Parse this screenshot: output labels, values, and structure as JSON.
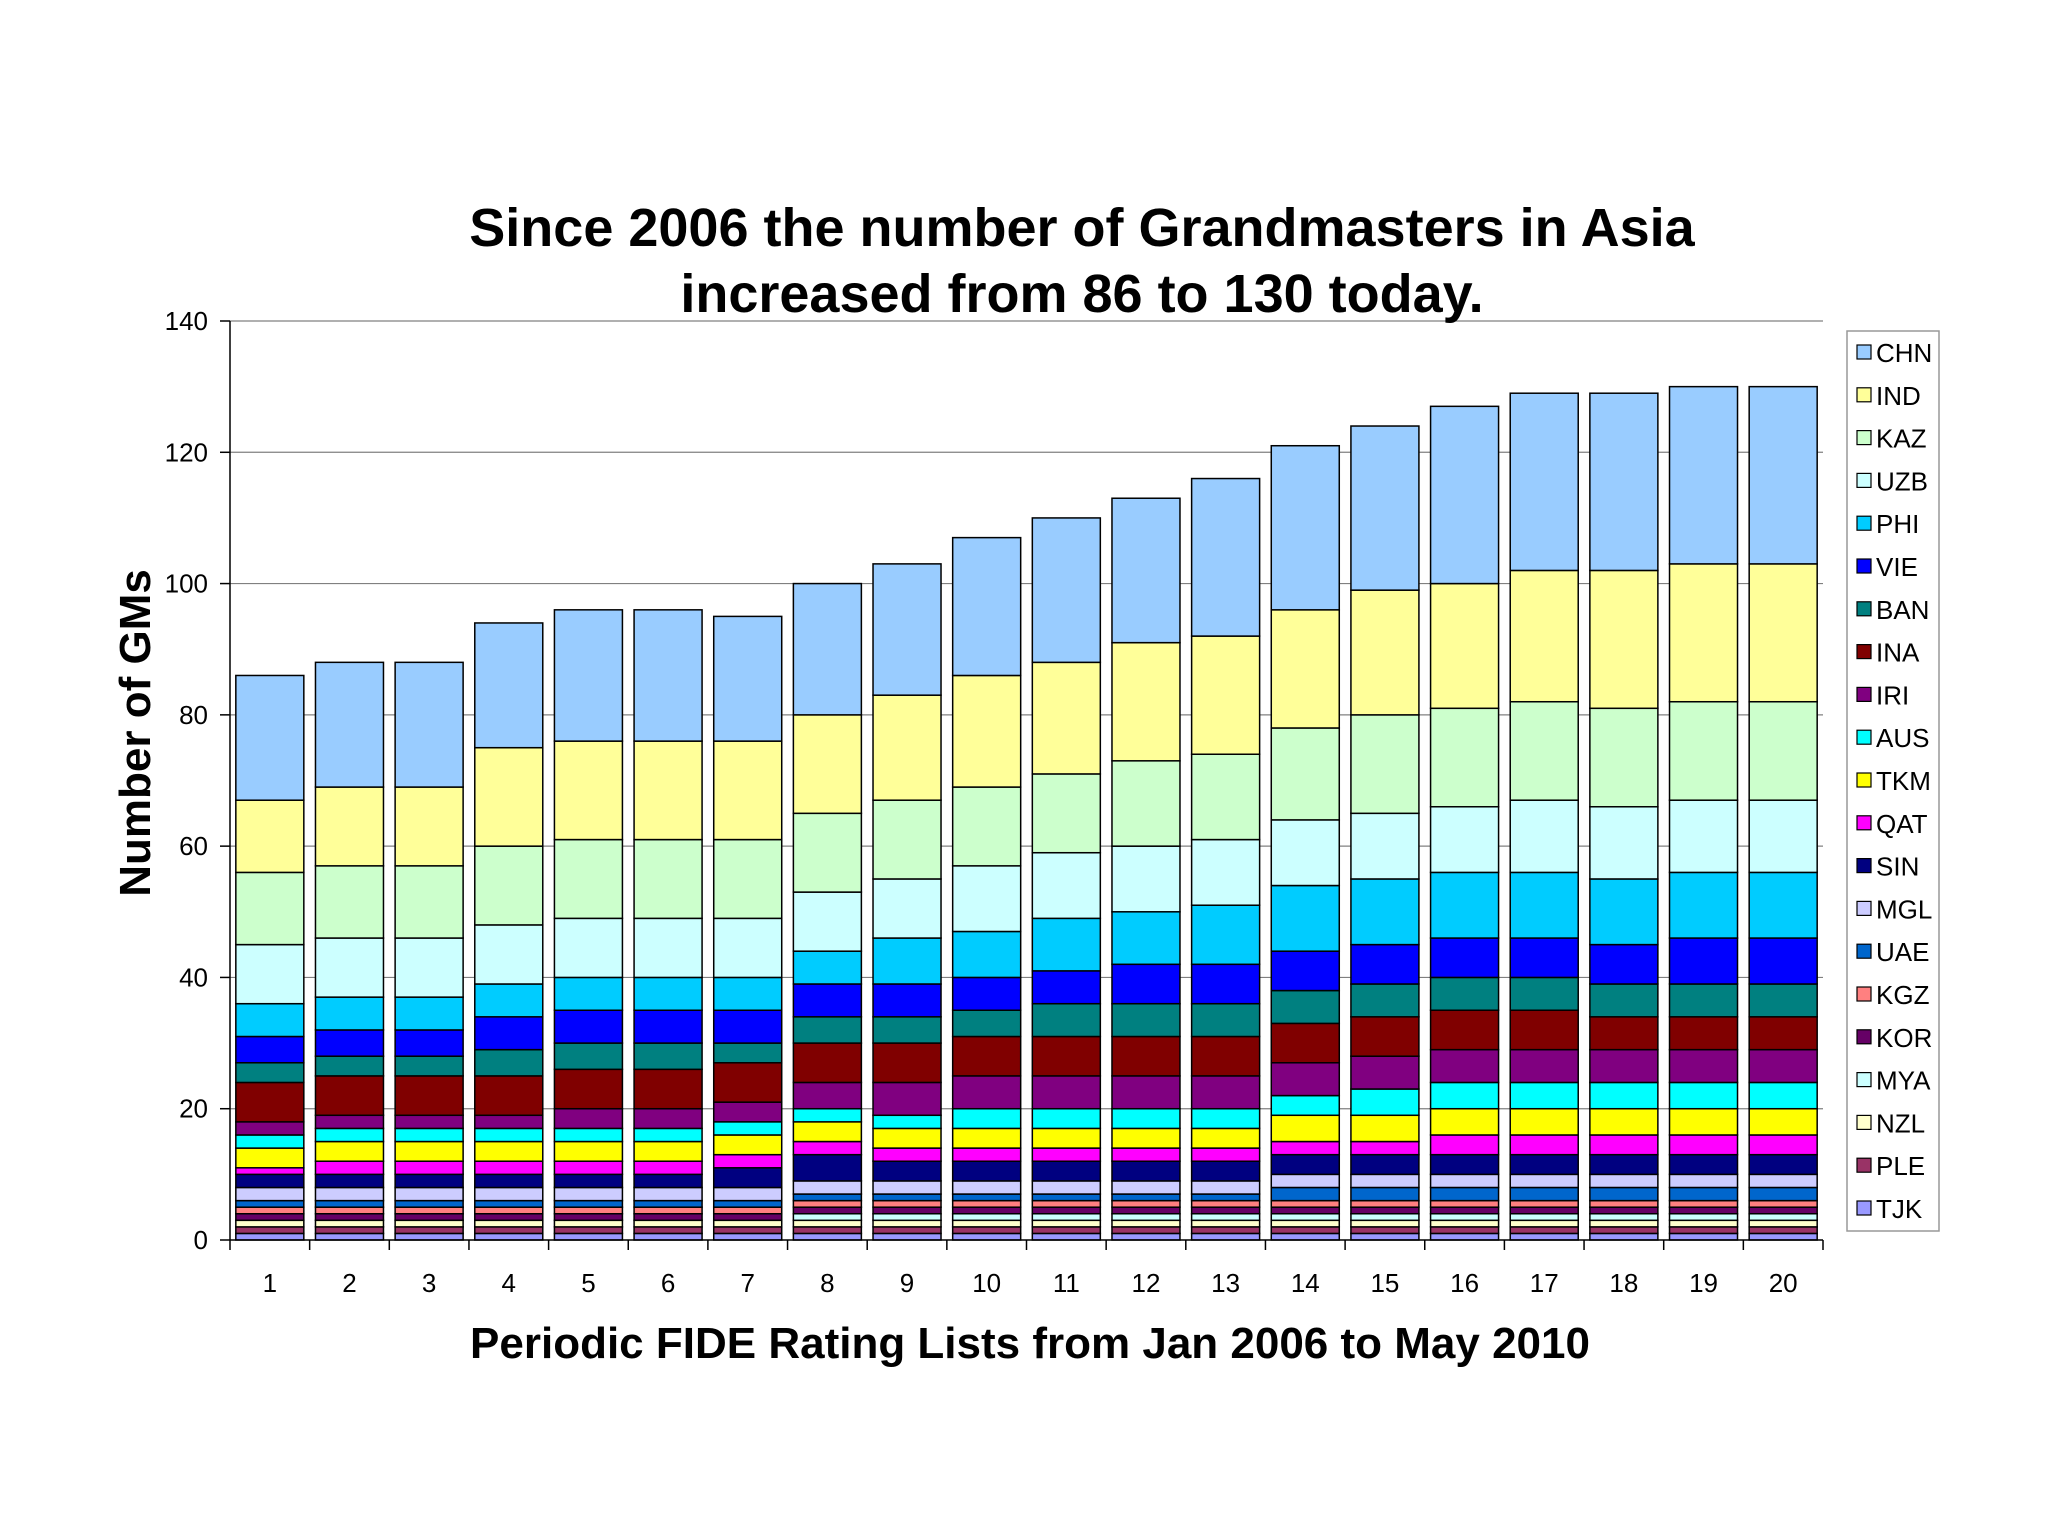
{
  "chart_data": {
    "type": "bar",
    "stacked": true,
    "title": "Since 2006 the number of Grandmasters in Asia increased from 86 to 130 today.",
    "title_lines": [
      "Since 2006 the number of Grandmasters in Asia",
      "increased from 86 to 130 today."
    ],
    "xlabel": "Periodic FIDE Rating Lists from Jan 2006 to May 2010",
    "ylabel": "Number of GMs",
    "ylim": [
      0,
      140
    ],
    "yticks": [
      0,
      20,
      40,
      60,
      80,
      100,
      120,
      140
    ],
    "grid": true,
    "legend_position": "right",
    "categories": [
      "1",
      "2",
      "3",
      "4",
      "5",
      "6",
      "7",
      "8",
      "9",
      "10",
      "11",
      "12",
      "13",
      "14",
      "15",
      "16",
      "17",
      "18",
      "19",
      "20"
    ],
    "series": [
      {
        "name": "TJK",
        "color": "#9999ff",
        "values": [
          1,
          1,
          1,
          1,
          1,
          1,
          1,
          1,
          1,
          1,
          1,
          1,
          1,
          1,
          1,
          1,
          1,
          1,
          1,
          1
        ]
      },
      {
        "name": "PLE",
        "color": "#993366",
        "values": [
          1,
          1,
          1,
          1,
          1,
          1,
          1,
          1,
          1,
          1,
          1,
          1,
          1,
          1,
          1,
          1,
          1,
          1,
          1,
          1
        ]
      },
      {
        "name": "NZL",
        "color": "#ffffcc",
        "values": [
          1,
          1,
          1,
          1,
          1,
          1,
          1,
          1,
          1,
          1,
          1,
          1,
          1,
          1,
          1,
          1,
          1,
          1,
          1,
          1
        ]
      },
      {
        "name": "MYA",
        "color": "#ccffff",
        "values": [
          0,
          0,
          0,
          0,
          0,
          0,
          0,
          1,
          1,
          1,
          1,
          1,
          1,
          1,
          1,
          1,
          1,
          1,
          1,
          1
        ]
      },
      {
        "name": "KOR",
        "color": "#660066",
        "values": [
          1,
          1,
          1,
          1,
          1,
          1,
          1,
          1,
          1,
          1,
          1,
          1,
          1,
          1,
          1,
          1,
          1,
          1,
          1,
          1
        ]
      },
      {
        "name": "KGZ",
        "color": "#ff8080",
        "values": [
          1,
          1,
          1,
          1,
          1,
          1,
          1,
          1,
          1,
          1,
          1,
          1,
          1,
          1,
          1,
          1,
          1,
          1,
          1,
          1
        ]
      },
      {
        "name": "UAE",
        "color": "#0066cc",
        "values": [
          1,
          1,
          1,
          1,
          1,
          1,
          1,
          1,
          1,
          1,
          1,
          1,
          1,
          2,
          2,
          2,
          2,
          2,
          2,
          2
        ]
      },
      {
        "name": "MGL",
        "color": "#ccccff",
        "values": [
          2,
          2,
          2,
          2,
          2,
          2,
          2,
          2,
          2,
          2,
          2,
          2,
          2,
          2,
          2,
          2,
          2,
          2,
          2,
          2
        ]
      },
      {
        "name": "SIN",
        "color": "#000080",
        "values": [
          2,
          2,
          2,
          2,
          2,
          2,
          3,
          4,
          3,
          3,
          3,
          3,
          3,
          3,
          3,
          3,
          3,
          3,
          3,
          3
        ]
      },
      {
        "name": "QAT",
        "color": "#ff00ff",
        "values": [
          1,
          2,
          2,
          2,
          2,
          2,
          2,
          2,
          2,
          2,
          2,
          2,
          2,
          2,
          2,
          3,
          3,
          3,
          3,
          3
        ]
      },
      {
        "name": "TKM",
        "color": "#ffff00",
        "values": [
          3,
          3,
          3,
          3,
          3,
          3,
          3,
          3,
          3,
          3,
          3,
          3,
          3,
          4,
          4,
          4,
          4,
          4,
          4,
          4
        ]
      },
      {
        "name": "AUS",
        "color": "#00ffff",
        "values": [
          2,
          2,
          2,
          2,
          2,
          2,
          2,
          2,
          2,
          3,
          3,
          3,
          3,
          3,
          4,
          4,
          4,
          4,
          4,
          4
        ]
      },
      {
        "name": "IRI",
        "color": "#800080",
        "values": [
          2,
          2,
          2,
          2,
          3,
          3,
          3,
          4,
          5,
          5,
          5,
          5,
          5,
          5,
          5,
          5,
          5,
          5,
          5,
          5
        ]
      },
      {
        "name": "INA",
        "color": "#800000",
        "values": [
          6,
          6,
          6,
          6,
          6,
          6,
          6,
          6,
          6,
          6,
          6,
          6,
          6,
          6,
          6,
          6,
          6,
          5,
          5,
          5
        ]
      },
      {
        "name": "BAN",
        "color": "#008080",
        "values": [
          3,
          3,
          3,
          4,
          4,
          4,
          3,
          4,
          4,
          4,
          5,
          5,
          5,
          5,
          5,
          5,
          5,
          5,
          5,
          5
        ]
      },
      {
        "name": "VIE",
        "color": "#0000ff",
        "values": [
          4,
          4,
          4,
          5,
          5,
          5,
          5,
          5,
          5,
          5,
          5,
          6,
          6,
          6,
          6,
          6,
          6,
          6,
          7,
          7
        ]
      },
      {
        "name": "PHI",
        "color": "#00ccff",
        "values": [
          5,
          5,
          5,
          5,
          5,
          5,
          5,
          5,
          7,
          7,
          8,
          8,
          9,
          10,
          10,
          10,
          10,
          10,
          10,
          10
        ]
      },
      {
        "name": "UZB",
        "color": "#ccffff",
        "values": [
          9,
          9,
          9,
          9,
          9,
          9,
          9,
          9,
          9,
          10,
          10,
          10,
          10,
          10,
          10,
          10,
          11,
          11,
          11,
          11
        ]
      },
      {
        "name": "KAZ",
        "color": "#ccffcc",
        "values": [
          11,
          11,
          11,
          12,
          12,
          12,
          12,
          12,
          12,
          12,
          12,
          13,
          13,
          14,
          15,
          15,
          15,
          15,
          15,
          15
        ]
      },
      {
        "name": "IND",
        "color": "#ffff99",
        "values": [
          11,
          12,
          12,
          15,
          15,
          15,
          15,
          15,
          16,
          17,
          17,
          18,
          18,
          18,
          19,
          19,
          20,
          21,
          21,
          21
        ]
      },
      {
        "name": "CHN",
        "color": "#99ccff",
        "values": [
          19,
          19,
          19,
          19,
          20,
          20,
          19,
          20,
          20,
          21,
          22,
          22,
          24,
          25,
          25,
          27,
          27,
          27,
          27,
          27
        ]
      }
    ],
    "legend_order": [
      "CHN",
      "IND",
      "KAZ",
      "UZB",
      "PHI",
      "VIE",
      "BAN",
      "INA",
      "IRI",
      "AUS",
      "TKM",
      "QAT",
      "SIN",
      "MGL",
      "UAE",
      "KGZ",
      "KOR",
      "MYA",
      "NZL",
      "PLE",
      "TJK"
    ]
  }
}
